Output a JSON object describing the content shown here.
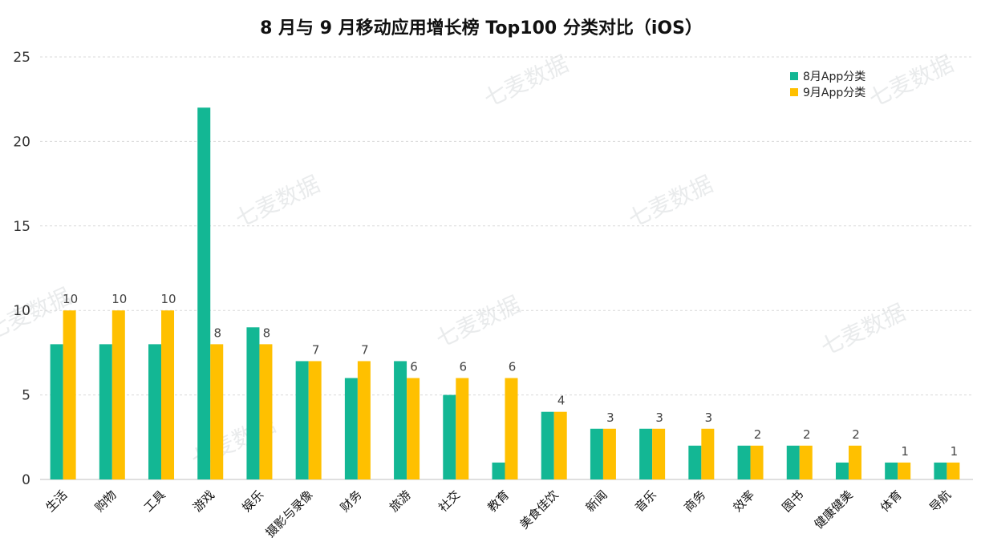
{
  "chart_data": {
    "type": "bar",
    "title": "8 月与 9 月移动应用增长榜 Top100 分类对比（iOS）",
    "categories": [
      "生活",
      "购物",
      "工具",
      "游戏",
      "娱乐",
      "摄影与录像",
      "财务",
      "旅游",
      "社交",
      "教育",
      "美食佳饮",
      "新闻",
      "音乐",
      "商务",
      "效率",
      "图书",
      "健康健美",
      "体育",
      "导航"
    ],
    "series": [
      {
        "name": "8月App分类",
        "color": "#13b794",
        "values": [
          8,
          8,
          8,
          22,
          9,
          7,
          6,
          7,
          5,
          1,
          4,
          3,
          3,
          2,
          2,
          2,
          1,
          1,
          1
        ]
      },
      {
        "name": "9月App分类",
        "color": "#ffc000",
        "values": [
          10,
          10,
          10,
          8,
          8,
          7,
          7,
          6,
          6,
          6,
          4,
          3,
          3,
          3,
          2,
          2,
          2,
          1,
          1
        ]
      }
    ],
    "data_labels": [
      "10",
      "10",
      "10",
      "8",
      "8",
      "7",
      "7",
      "6",
      "6",
      "6",
      "4",
      "3",
      "3",
      "3",
      "2",
      "2",
      "2",
      "1",
      "1"
    ],
    "ylim": [
      0,
      25
    ],
    "yticks": [
      "0",
      "5",
      "10",
      "15",
      "20",
      "25"
    ],
    "grid": true,
    "legend_position": "top-right",
    "watermark": "七麦数据"
  }
}
